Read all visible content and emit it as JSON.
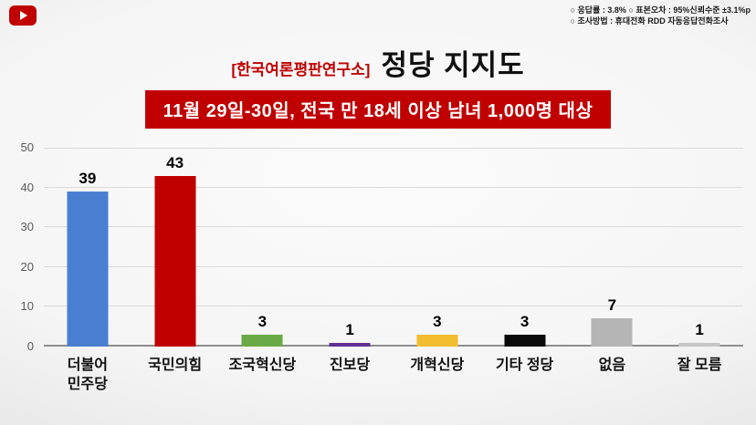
{
  "header": {
    "methodology_line1": "○ 응답률 : 3.8%  ○ 표본오차 : 95%신뢰수준 ±3.1%p",
    "methodology_line2": "○ 조사방법 : 휴대전화 RDD 자동응답전화조사",
    "source": "[한국여론평판연구소]",
    "title": "정당 지지도",
    "banner": "11월 29일-30일, 전국 만 18세 이상 남녀 1,000명 대상"
  },
  "colors": {
    "accent_red": "#c00000",
    "banner_bg": "#c00000",
    "banner_text": "#ffffff"
  },
  "chart_data": {
    "type": "bar",
    "title": "정당 지지도",
    "categories": [
      "더불어\n민주당",
      "국민의힘",
      "조국혁신당",
      "진보당",
      "개혁신당",
      "기타 정당",
      "없음",
      "잘 모름"
    ],
    "values": [
      39,
      43,
      3,
      1,
      3,
      3,
      7,
      1
    ],
    "bar_colors": [
      "#4a7ed0",
      "#c00000",
      "#6aaa46",
      "#5f3292",
      "#f2bd2e",
      "#0a0a0a",
      "#b5b5b5",
      "#c6c6c6"
    ],
    "xlabel": "",
    "ylabel": "",
    "ylim": [
      0,
      50
    ],
    "yticks": [
      0,
      10,
      20,
      30,
      40,
      50
    ],
    "grid": true,
    "legend": "none"
  }
}
